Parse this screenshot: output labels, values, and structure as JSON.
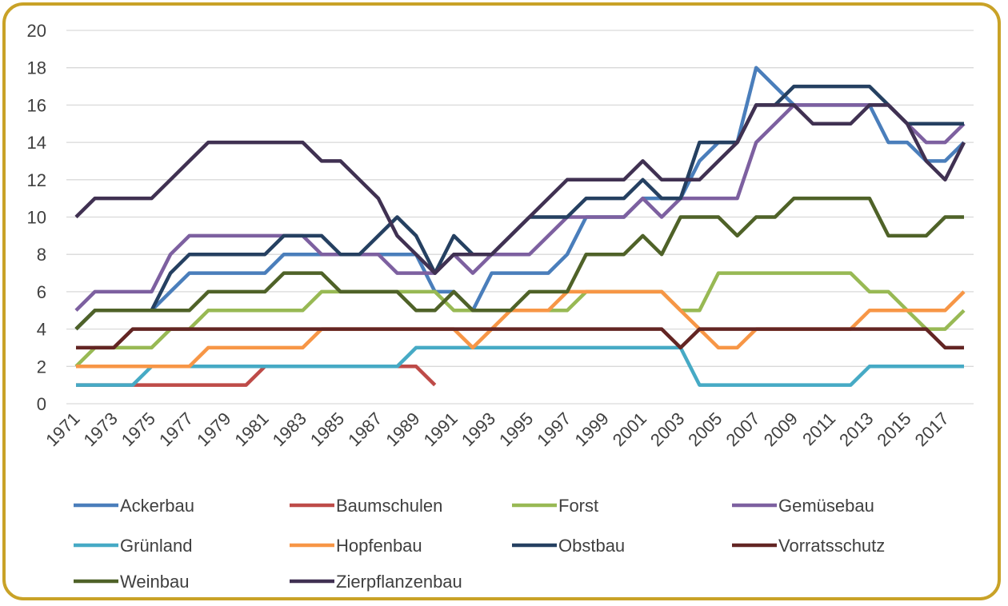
{
  "chart_data": {
    "type": "line",
    "categories": [
      "1971",
      null,
      "1973",
      null,
      "1975",
      null,
      "1977",
      null,
      "1979",
      null,
      "1981",
      null,
      "1983",
      null,
      "1985",
      null,
      "1987",
      null,
      "1989",
      null,
      "1991",
      null,
      "1993",
      null,
      "1995",
      null,
      "1997",
      null,
      "1999",
      null,
      "2001",
      null,
      "2003",
      null,
      "2005",
      null,
      "2007",
      null,
      "2009",
      null,
      "2011",
      null,
      "2013",
      null,
      "2015",
      null,
      "2017",
      null
    ],
    "ylim": [
      0,
      20
    ],
    "yticks": [
      0,
      2,
      4,
      6,
      8,
      10,
      12,
      14,
      16,
      18,
      20
    ],
    "grid": true,
    "series": [
      {
        "name": "Ackerbau",
        "color": "#4a7ebb",
        "values": [
          4,
          5,
          5,
          5,
          5,
          6,
          7,
          7,
          7,
          7,
          7,
          8,
          8,
          8,
          8,
          8,
          8,
          8,
          8,
          6,
          6,
          5,
          7,
          7,
          7,
          7,
          8,
          10,
          10,
          10,
          11,
          11,
          11,
          13,
          14,
          14,
          18,
          17,
          16,
          16,
          16,
          16,
          16,
          14,
          14,
          13,
          13,
          14
        ]
      },
      {
        "name": "Baumschulen",
        "color": "#be4b48",
        "values": [
          1,
          1,
          1,
          1,
          1,
          1,
          1,
          1,
          1,
          1,
          2,
          2,
          2,
          2,
          2,
          2,
          2,
          2,
          2,
          1,
          null,
          null,
          null,
          null,
          null,
          null,
          null,
          null,
          null,
          null,
          null,
          null,
          null,
          null,
          null,
          null,
          null,
          null,
          null,
          null,
          null,
          null,
          null,
          null,
          null,
          null,
          null,
          null
        ]
      },
      {
        "name": "Forst",
        "color": "#98b954",
        "values": [
          2,
          3,
          3,
          3,
          3,
          4,
          4,
          5,
          5,
          5,
          5,
          5,
          5,
          6,
          6,
          6,
          6,
          6,
          6,
          6,
          5,
          5,
          5,
          5,
          5,
          5,
          5,
          6,
          6,
          6,
          6,
          6,
          5,
          5,
          7,
          7,
          7,
          7,
          7,
          7,
          7,
          7,
          6,
          6,
          5,
          4,
          4,
          5
        ]
      },
      {
        "name": "Gemüsebau",
        "color": "#7d60a0",
        "values": [
          5,
          6,
          6,
          6,
          6,
          8,
          9,
          9,
          9,
          9,
          9,
          9,
          9,
          8,
          8,
          8,
          8,
          7,
          7,
          7,
          8,
          7,
          8,
          8,
          8,
          9,
          10,
          10,
          10,
          10,
          11,
          10,
          11,
          11,
          11,
          11,
          14,
          15,
          16,
          16,
          16,
          16,
          16,
          16,
          15,
          14,
          14,
          15
        ]
      },
      {
        "name": "Grünland",
        "color": "#46aac5",
        "values": [
          1,
          1,
          1,
          1,
          2,
          2,
          2,
          2,
          2,
          2,
          2,
          2,
          2,
          2,
          2,
          2,
          2,
          2,
          3,
          3,
          3,
          3,
          3,
          3,
          3,
          3,
          3,
          3,
          3,
          3,
          3,
          3,
          3,
          1,
          1,
          1,
          1,
          1,
          1,
          1,
          1,
          1,
          2,
          2,
          2,
          2,
          2,
          2
        ]
      },
      {
        "name": "Hopfenbau",
        "color": "#f79646",
        "values": [
          2,
          2,
          2,
          2,
          2,
          2,
          2,
          3,
          3,
          3,
          3,
          3,
          3,
          4,
          4,
          4,
          4,
          4,
          4,
          4,
          4,
          3,
          4,
          5,
          5,
          5,
          6,
          6,
          6,
          6,
          6,
          6,
          5,
          4,
          3,
          3,
          4,
          4,
          4,
          4,
          4,
          4,
          5,
          5,
          5,
          5,
          5,
          6
        ]
      },
      {
        "name": "Obstbau",
        "color": "#254061",
        "values": [
          4,
          5,
          5,
          5,
          5,
          7,
          8,
          8,
          8,
          8,
          8,
          9,
          9,
          9,
          8,
          8,
          9,
          10,
          9,
          7,
          9,
          8,
          8,
          9,
          10,
          10,
          10,
          11,
          11,
          11,
          12,
          11,
          11,
          14,
          14,
          14,
          16,
          16,
          17,
          17,
          17,
          17,
          17,
          16,
          15,
          15,
          15,
          15
        ]
      },
      {
        "name": "Vorratsschutz",
        "color": "#632523",
        "values": [
          3,
          3,
          3,
          4,
          4,
          4,
          4,
          4,
          4,
          4,
          4,
          4,
          4,
          4,
          4,
          4,
          4,
          4,
          4,
          4,
          4,
          4,
          4,
          4,
          4,
          4,
          4,
          4,
          4,
          4,
          4,
          4,
          3,
          4,
          4,
          4,
          4,
          4,
          4,
          4,
          4,
          4,
          4,
          4,
          4,
          4,
          3,
          3
        ]
      },
      {
        "name": "Weinbau",
        "color": "#4f6228",
        "values": [
          4,
          5,
          5,
          5,
          5,
          5,
          5,
          6,
          6,
          6,
          6,
          7,
          7,
          7,
          6,
          6,
          6,
          6,
          5,
          5,
          6,
          5,
          5,
          5,
          6,
          6,
          6,
          8,
          8,
          8,
          9,
          8,
          10,
          10,
          10,
          9,
          10,
          10,
          11,
          11,
          11,
          11,
          11,
          9,
          9,
          9,
          10,
          10
        ]
      },
      {
        "name": "Zierpflanzenbau",
        "color": "#403152",
        "values": [
          10,
          11,
          11,
          11,
          11,
          12,
          13,
          14,
          14,
          14,
          14,
          14,
          14,
          13,
          13,
          12,
          11,
          9,
          8,
          7,
          8,
          8,
          8,
          9,
          10,
          11,
          12,
          12,
          12,
          12,
          13,
          12,
          12,
          12,
          13,
          14,
          16,
          16,
          16,
          15,
          15,
          15,
          16,
          16,
          15,
          13,
          12,
          14
        ]
      }
    ]
  }
}
